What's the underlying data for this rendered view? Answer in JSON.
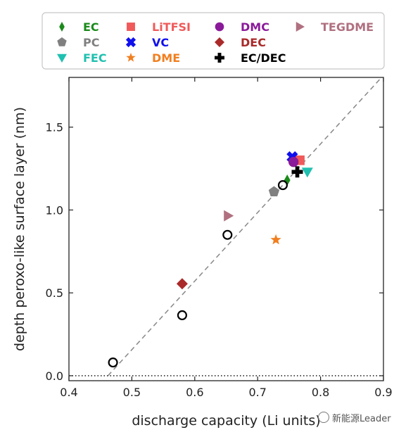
{
  "chart_data": {
    "type": "scatter",
    "xlabel": "discharge capacity (Li units)",
    "ylabel": "depth peroxo-like surface layer (nm)",
    "xlim": [
      0.4,
      0.9
    ],
    "ylim": [
      -0.03,
      1.8
    ],
    "xticks": [
      0.4,
      0.5,
      0.6,
      0.7,
      0.8,
      0.9
    ],
    "xtick_labels": [
      "0.4",
      "0.5",
      "0.6",
      "0.7",
      "0.8",
      "0.9"
    ],
    "yticks": [
      0.0,
      0.5,
      1.0,
      1.5
    ],
    "ytick_labels": [
      "0.0",
      "0.5",
      "1.0",
      "1.5"
    ],
    "grid": false,
    "legend_position": "top",
    "fit_line": {
      "style": "dashed",
      "color": "#888888",
      "points": [
        [
          0.462,
          0.0
        ],
        [
          0.897,
          1.8
        ]
      ]
    },
    "reference_line": {
      "style": "dotted",
      "color": "#000000",
      "y": 0.0
    },
    "series": [
      {
        "name": "EC",
        "color": "#1a8a1a",
        "marker": "thin-diamond",
        "x": [
          0.747
        ],
        "y": [
          1.18
        ]
      },
      {
        "name": "PC",
        "color": "#808080",
        "marker": "pentagon",
        "x": [
          0.726
        ],
        "y": [
          1.11
        ]
      },
      {
        "name": "FEC",
        "color": "#20c0b0",
        "marker": "triangle-down",
        "x": [
          0.779
        ],
        "y": [
          1.23
        ]
      },
      {
        "name": "LiTFSI",
        "color": "#f05a5a",
        "marker": "square",
        "x": [
          0.767
        ],
        "y": [
          1.3
        ]
      },
      {
        "name": "VC",
        "color": "#1010ee",
        "marker": "x-filled",
        "x": [
          0.755
        ],
        "y": [
          1.32
        ]
      },
      {
        "name": "DME",
        "color": "#f07f20",
        "marker": "star",
        "x": [
          0.729
        ],
        "y": [
          0.82
        ]
      },
      {
        "name": "DMC",
        "color": "#8a1a9a",
        "marker": "circle",
        "x": [
          0.757
        ],
        "y": [
          1.29
        ]
      },
      {
        "name": "DEC",
        "color": "#aa2a2a",
        "marker": "diamond",
        "x": [
          0.58
        ],
        "y": [
          0.555
        ]
      },
      {
        "name": "EC/DEC",
        "color": "#000000",
        "marker": "plus-filled",
        "x": [
          0.763
        ],
        "y": [
          1.23
        ]
      },
      {
        "name": "TEGDME",
        "color": "#b07080",
        "marker": "triangle-right",
        "x": [
          0.653
        ],
        "y": [
          0.965
        ]
      },
      {
        "name": "",
        "color": "#000000",
        "marker": "open-circle",
        "x": [
          0.47,
          0.58,
          0.652,
          0.74
        ],
        "y": [
          0.08,
          0.365,
          0.85,
          1.15
        ]
      }
    ]
  },
  "watermark": "新能源Leader"
}
